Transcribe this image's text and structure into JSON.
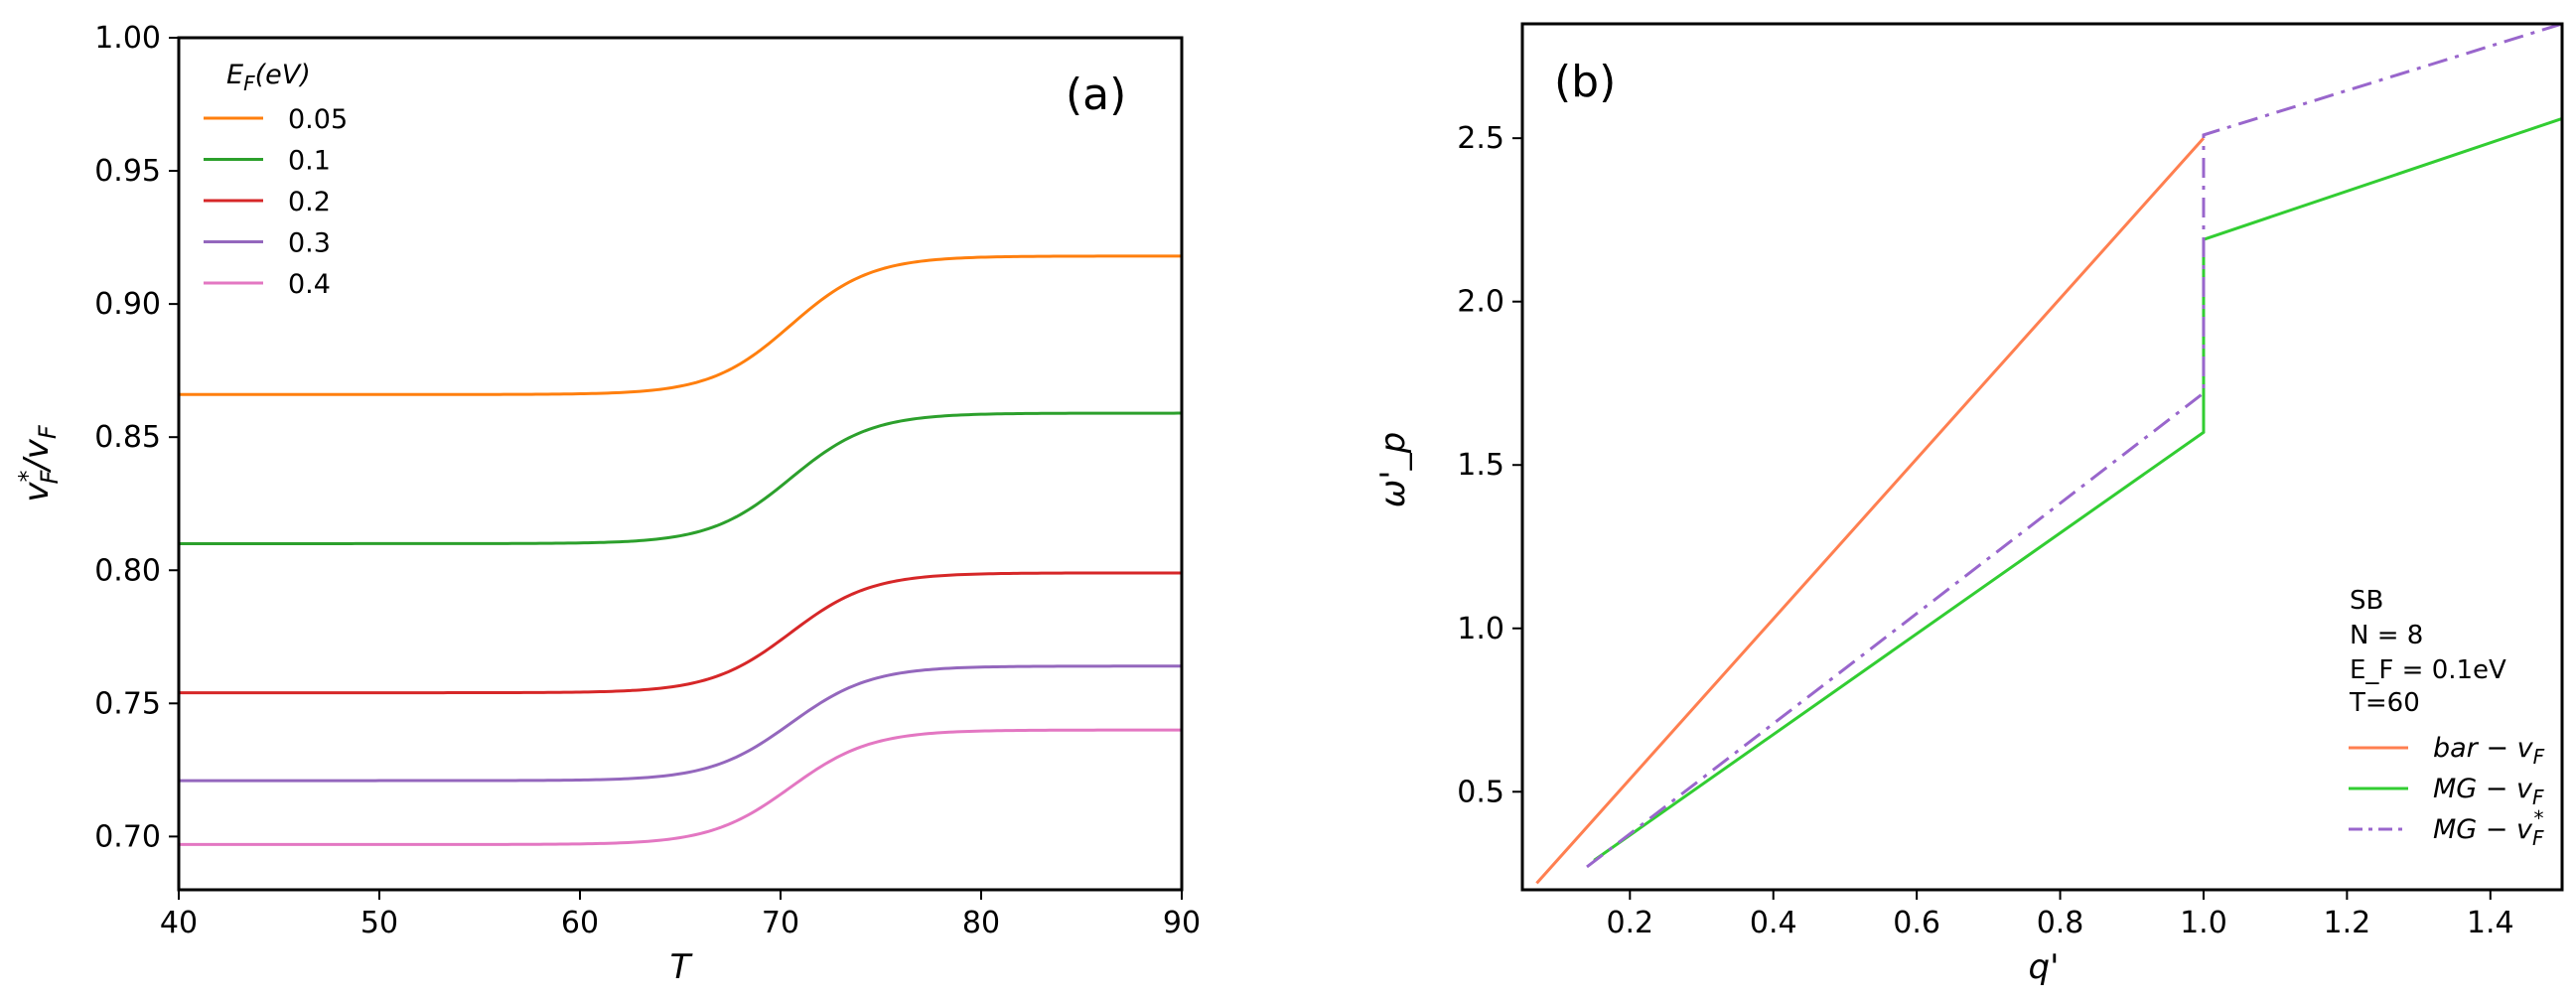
{
  "chart_data": [
    {
      "panel": "(a)",
      "type": "line",
      "xlabel": "T",
      "ylabel": "v_F^*/v_F",
      "ylabel_parts": {
        "main": "v",
        "sup": "*",
        "sub": "F",
        "tail_main": "/v",
        "tail_sub": "F"
      },
      "xlim": [
        40,
        90
      ],
      "ylim": [
        0.68,
        1.0
      ],
      "xticks": [
        "40",
        "50",
        "60",
        "70",
        "80",
        "90"
      ],
      "yticks": [
        "0.70",
        "0.75",
        "0.80",
        "0.85",
        "0.90",
        "0.95",
        "1.00"
      ],
      "legend": {
        "title_main": "E",
        "title_sub": "F",
        "title_tail": "(eV)",
        "placement": "top-left"
      },
      "transition_center": 70.5,
      "transition_width": 2.0,
      "series": [
        {
          "name": "0.05",
          "low": 0.866,
          "high": 0.918,
          "color": "#ff7f0e"
        },
        {
          "name": "0.1",
          "low": 0.81,
          "high": 0.859,
          "color": "#2ca02c"
        },
        {
          "name": "0.2",
          "low": 0.754,
          "high": 0.799,
          "color": "#d62728"
        },
        {
          "name": "0.3",
          "low": 0.721,
          "high": 0.764,
          "color": "#9467bd"
        },
        {
          "name": "0.4",
          "low": 0.697,
          "high": 0.74,
          "color": "#e377c2"
        }
      ]
    },
    {
      "panel": "(b)",
      "type": "line",
      "xlabel": "q'",
      "ylabel": "ω'_p",
      "xlim": [
        0.05,
        1.5
      ],
      "ylim": [
        0.2,
        2.85
      ],
      "xticks": [
        "0.2",
        "0.4",
        "0.6",
        "0.8",
        "1.0",
        "1.2",
        "1.4"
      ],
      "yticks": [
        "0.5",
        "1.0",
        "1.5",
        "2.0",
        "2.5"
      ],
      "annotation": [
        "SB",
        "N = 8",
        "E_F = 0.1eV",
        "T=60"
      ],
      "series": [
        {
          "name": "bar − v_F",
          "name_main": "bar − v",
          "name_sub": "F",
          "color": "#ff7f50",
          "dash": "solid",
          "x": [
            0.07,
            1.0
          ],
          "y": [
            0.22,
            2.5
          ]
        },
        {
          "name": "MG − v_F",
          "name_main": "MG − v",
          "name_sub": "F",
          "color": "#32cd32",
          "dash": "solid",
          "x": [
            0.15,
            1.0,
            1.0,
            1.5
          ],
          "y": [
            0.29,
            1.6,
            2.19,
            2.56
          ]
        },
        {
          "name": "MG − v_F^*",
          "name_main": "MG − v",
          "name_sub": "F",
          "name_sup": "*",
          "color": "#9966cc",
          "dash": "dashdot",
          "x": [
            0.14,
            1.0,
            1.0,
            1.5
          ],
          "y": [
            0.27,
            1.72,
            2.51,
            2.85
          ]
        }
      ]
    }
  ]
}
